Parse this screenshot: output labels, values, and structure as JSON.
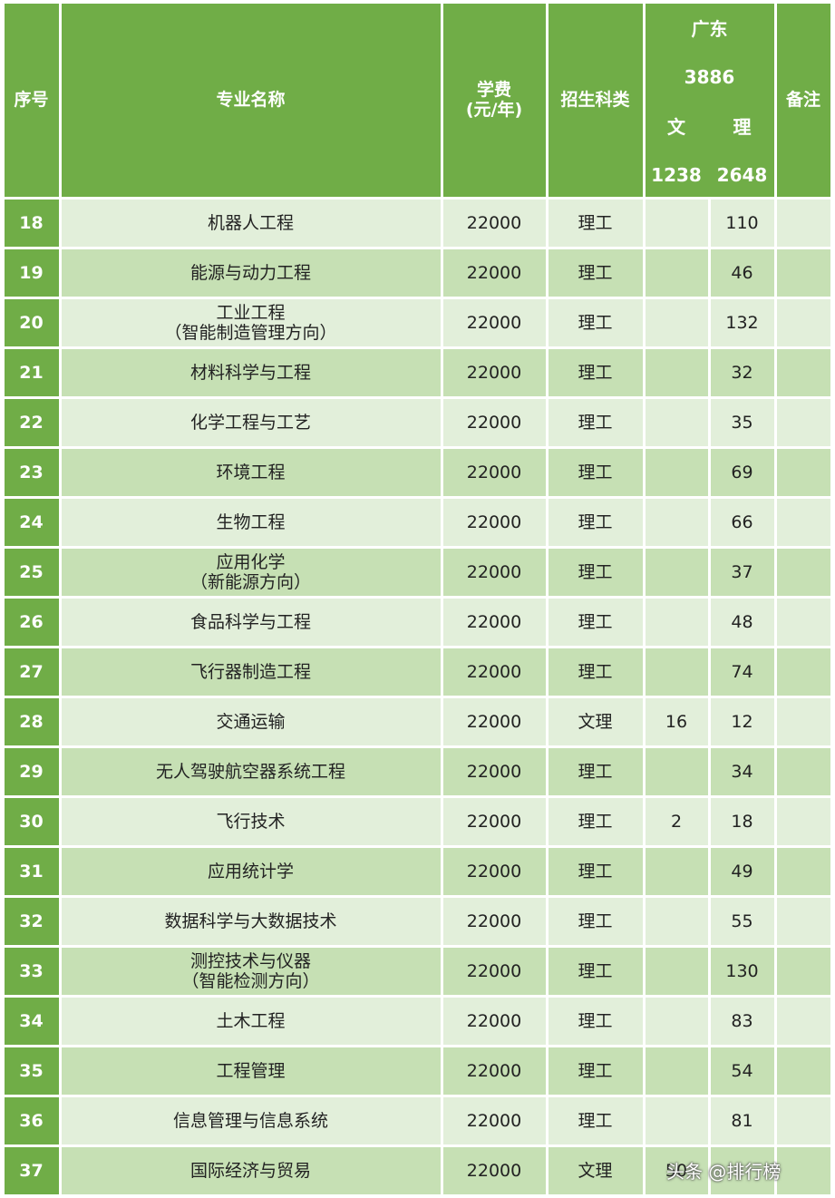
{
  "table": {
    "header": {
      "no": "序号",
      "major": "专业名称",
      "fee": [
        "学费",
        "(元/年)"
      ],
      "category": "招生科类",
      "region": "广东",
      "region_total": 3886,
      "wen": "文",
      "li": "理",
      "wen_total": 1238,
      "li_total": 2648,
      "note": "备注"
    },
    "rows": [
      {
        "no": 18,
        "major": [
          "机器人工程"
        ],
        "fee": 22000,
        "category": "理工",
        "wen": null,
        "li": 110
      },
      {
        "no": 19,
        "major": [
          "能源与动力工程"
        ],
        "fee": 22000,
        "category": "理工",
        "wen": null,
        "li": 46
      },
      {
        "no": 20,
        "major": [
          "工业工程",
          "（智能制造管理方向）"
        ],
        "fee": 22000,
        "category": "理工",
        "wen": null,
        "li": 132
      },
      {
        "no": 21,
        "major": [
          "材料科学与工程"
        ],
        "fee": 22000,
        "category": "理工",
        "wen": null,
        "li": 32
      },
      {
        "no": 22,
        "major": [
          "化学工程与工艺"
        ],
        "fee": 22000,
        "category": "理工",
        "wen": null,
        "li": 35
      },
      {
        "no": 23,
        "major": [
          "环境工程"
        ],
        "fee": 22000,
        "category": "理工",
        "wen": null,
        "li": 69
      },
      {
        "no": 24,
        "major": [
          "生物工程"
        ],
        "fee": 22000,
        "category": "理工",
        "wen": null,
        "li": 66
      },
      {
        "no": 25,
        "major": [
          "应用化学",
          "（新能源方向）"
        ],
        "fee": 22000,
        "category": "理工",
        "wen": null,
        "li": 37
      },
      {
        "no": 26,
        "major": [
          "食品科学与工程"
        ],
        "fee": 22000,
        "category": "理工",
        "wen": null,
        "li": 48
      },
      {
        "no": 27,
        "major": [
          "飞行器制造工程"
        ],
        "fee": 22000,
        "category": "理工",
        "wen": null,
        "li": 74
      },
      {
        "no": 28,
        "major": [
          "交通运输"
        ],
        "fee": 22000,
        "category": "文理",
        "wen": 16,
        "li": 12
      },
      {
        "no": 29,
        "major": [
          "无人驾驶航空器系统工程"
        ],
        "fee": 22000,
        "category": "理工",
        "wen": null,
        "li": 34
      },
      {
        "no": 30,
        "major": [
          "飞行技术"
        ],
        "fee": 22000,
        "category": "理工",
        "wen": 2,
        "li": 18
      },
      {
        "no": 31,
        "major": [
          "应用统计学"
        ],
        "fee": 22000,
        "category": "理工",
        "wen": null,
        "li": 49
      },
      {
        "no": 32,
        "major": [
          "数据科学与大数据技术"
        ],
        "fee": 22000,
        "category": "理工",
        "wen": null,
        "li": 55
      },
      {
        "no": 33,
        "major": [
          "测控技术与仪器",
          "（智能检测方向）"
        ],
        "fee": 22000,
        "category": "理工",
        "wen": null,
        "li": 130
      },
      {
        "no": 34,
        "major": [
          "土木工程"
        ],
        "fee": 22000,
        "category": "理工",
        "wen": null,
        "li": 83
      },
      {
        "no": 35,
        "major": [
          "工程管理"
        ],
        "fee": 22000,
        "category": "理工",
        "wen": null,
        "li": 54
      },
      {
        "no": 36,
        "major": [
          "信息管理与信息系统"
        ],
        "fee": 22000,
        "category": "理工",
        "wen": null,
        "li": 81
      },
      {
        "no": 37,
        "major": [
          "国际经济与贸易"
        ],
        "fee": 22000,
        "category": "文理",
        "wen": 50,
        "li": null
      }
    ]
  },
  "watermark": "头条 @排行榜"
}
